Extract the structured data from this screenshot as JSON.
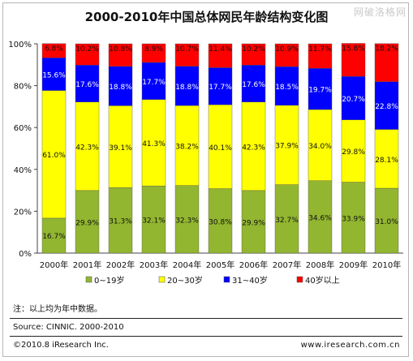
{
  "chart_data": {
    "type": "bar",
    "stacked": true,
    "title": "2000-2010年中国总体网民年龄结构变化图",
    "categories": [
      "2000年",
      "2001年",
      "2002年",
      "2003年",
      "2004年",
      "2005年",
      "2006年",
      "2007年",
      "2008年",
      "2009年",
      "2010年"
    ],
    "yticks": [
      "0%",
      "20%",
      "40%",
      "60%",
      "80%",
      "100%"
    ],
    "ylim": [
      0,
      100
    ],
    "grid": false,
    "legend_position": "bottom",
    "series": [
      {
        "name": "0~19岁",
        "color": "#92b630",
        "values": [
          16.7,
          29.9,
          31.3,
          32.1,
          32.3,
          30.8,
          29.9,
          32.7,
          34.6,
          33.9,
          31.0
        ],
        "labels": [
          "16.7%",
          "29.9%",
          "31.3%",
          "32.1%",
          "32.3%",
          "30.8%",
          "29.9%",
          "32.7%",
          "34.6%",
          "33.9%",
          "31.0%"
        ]
      },
      {
        "name": "20~30岁",
        "color": "#ffff00",
        "values": [
          61.0,
          42.3,
          39.1,
          41.3,
          38.2,
          40.1,
          42.3,
          37.9,
          34.0,
          29.8,
          28.1
        ],
        "labels": [
          "61.0%",
          "42.3%",
          "39.1%",
          "41.3%",
          "38.2%",
          "40.1%",
          "42.3%",
          "37.9%",
          "34.0%",
          "29.8%",
          "28.1%"
        ]
      },
      {
        "name": "31~40岁",
        "color": "#0000ff",
        "values": [
          15.6,
          17.6,
          18.8,
          17.7,
          18.8,
          17.7,
          17.6,
          18.5,
          19.7,
          20.7,
          22.8
        ],
        "labels": [
          "15.6%",
          "17.6%",
          "18.8%",
          "17.7%",
          "18.8%",
          "17.7%",
          "17.6%",
          "18.5%",
          "19.7%",
          "20.7%",
          "22.8%"
        ]
      },
      {
        "name": "40岁以上",
        "color": "#ff0000",
        "values": [
          6.8,
          10.2,
          10.8,
          8.9,
          10.7,
          11.4,
          10.2,
          10.9,
          11.7,
          15.8,
          18.2
        ],
        "labels": [
          "6.8%",
          "10.2%",
          "10.8%",
          "8.9%",
          "10.7%",
          "11.4%",
          "10.2%",
          "10.9%",
          "11.7%",
          "15.8%",
          "18.2%"
        ]
      }
    ]
  },
  "note": "注：以上均为年中数据。",
  "source": "Source: CINNIC. 2000-2010",
  "copyright": "©2010.8 iResearch Inc.",
  "website": "www.iresearch.com.cn",
  "watermark": "网破洛格网"
}
